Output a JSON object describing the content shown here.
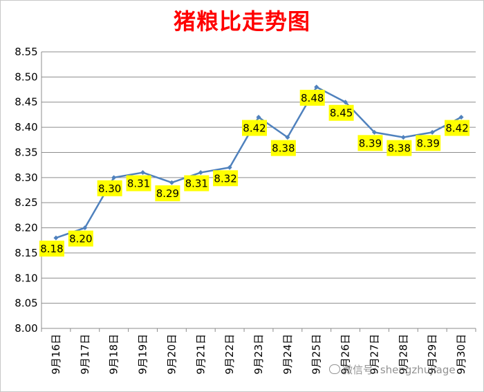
{
  "chart_data": {
    "type": "line",
    "title": "猪粮比走势图",
    "xlabel": "",
    "ylabel": "",
    "categories": [
      "9月16日",
      "9月17日",
      "9月18日",
      "9月19日",
      "9月20日",
      "9月21日",
      "9月22日",
      "9月23日",
      "9月24日",
      "9月25日",
      "9月26日",
      "9月27日",
      "9月28日",
      "9月29日",
      "9月30日"
    ],
    "series": [
      {
        "values": [
          8.18,
          8.2,
          8.3,
          8.31,
          8.29,
          8.31,
          8.32,
          8.42,
          8.38,
          8.48,
          8.45,
          8.39,
          8.38,
          8.39,
          8.42
        ]
      }
    ],
    "ylim": [
      8.0,
      8.55
    ],
    "ytick_step": 0.05,
    "grid": "horizontal",
    "legend": "none",
    "line_color": "#4f81bd",
    "label_bg_color": "#ffff00"
  },
  "watermark": {
    "text": "微信号: shengzhujiage"
  }
}
